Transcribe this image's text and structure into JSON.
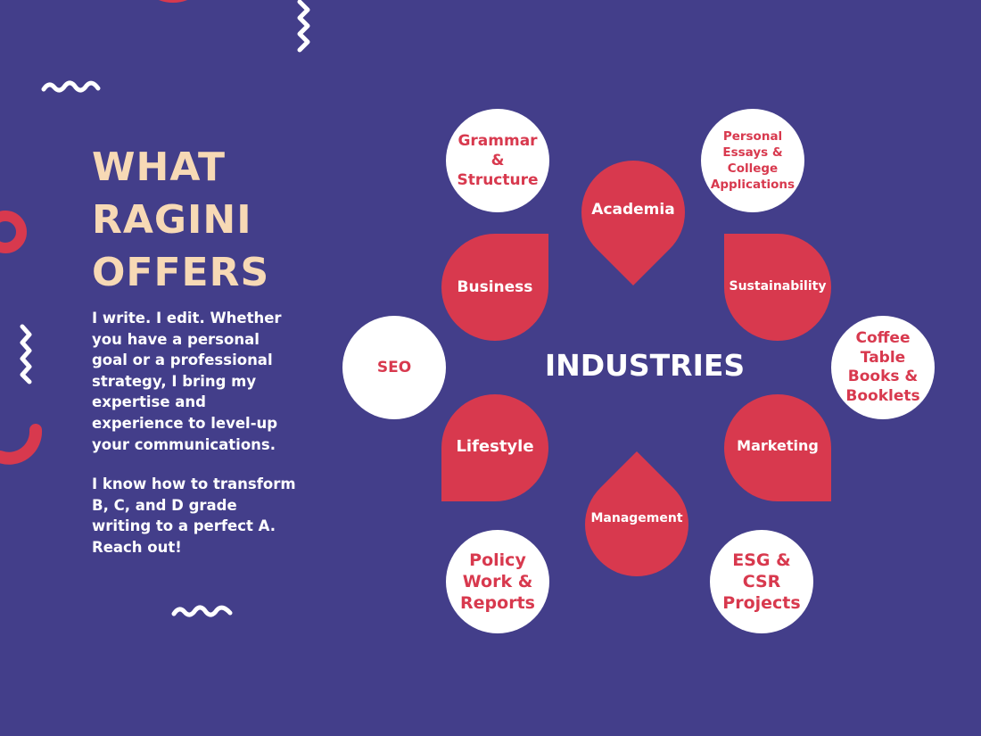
{
  "heading": {
    "lines": [
      "WHAT",
      "RAGINI",
      "OFFERS"
    ]
  },
  "intro": {
    "paragraph1": "I write. I edit. Whether you have a personal goal or a professional strategy, I bring my expertise and experience to level-up your communications.",
    "paragraph2": "I know how to transform B, C, and D grade writing to a perfect A. Reach out!"
  },
  "diagram": {
    "center_label": "INDUSTRIES",
    "industries": {
      "academia": "Academia",
      "business": "Business",
      "sustainability": "Sustainability",
      "lifestyle": "Lifestyle",
      "marketing": "Marketing",
      "management": "Management"
    },
    "services": {
      "grammar": "Grammar & Structure",
      "personal_essays": "Personal Essays & College Applications",
      "seo": "SEO",
      "coffee_table": "Coffee Table Books & Booklets",
      "policy": "Policy Work & Reports",
      "esg": "ESG & CSR Projects"
    }
  },
  "colors": {
    "background": "#433e8a",
    "accent_red": "#d8394e",
    "heading_cream": "#f7d9b5",
    "white": "#ffffff"
  }
}
